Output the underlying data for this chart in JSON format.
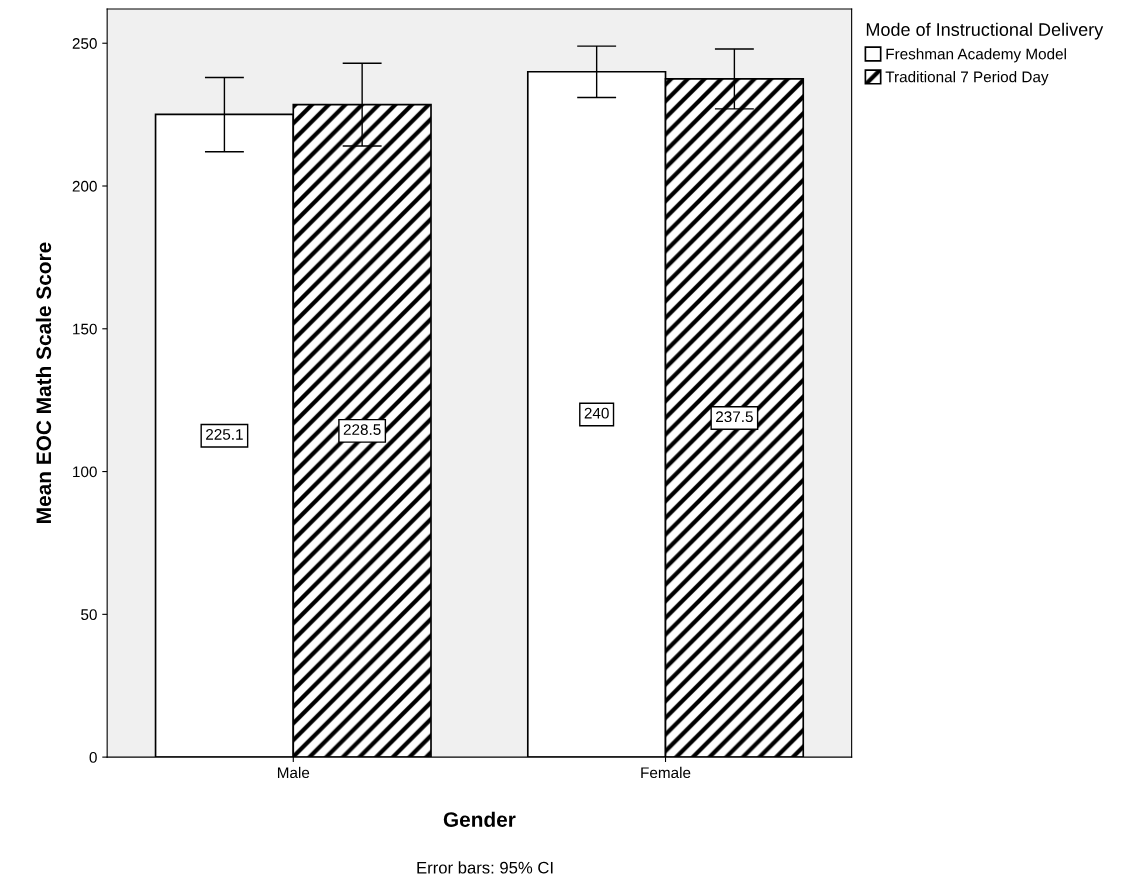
{
  "chart_data": {
    "type": "bar",
    "xlabel": "Gender",
    "ylabel": "Mean EOC Math Scale Score",
    "legend_title": "Mode of Instructional Delivery",
    "categories": [
      "Male",
      "Female"
    ],
    "series": [
      {
        "name": "Freshman Academy Model",
        "color": "#ffffff",
        "values": [
          225.1,
          240
        ],
        "value_labels": [
          "225.1",
          "240"
        ],
        "errors": [
          [
            212,
            238
          ],
          [
            231,
            249
          ]
        ]
      },
      {
        "name": "Traditional 7 Period Day",
        "color": "#000000",
        "values": [
          228.5,
          237.5
        ],
        "value_labels": [
          "228.5",
          "237.5"
        ],
        "errors": [
          [
            214,
            243
          ],
          [
            227,
            248
          ]
        ]
      }
    ],
    "ylim": [
      0,
      262
    ],
    "yticks": [
      0,
      50,
      100,
      150,
      200,
      250
    ],
    "grid": false,
    "legend": "top right",
    "annotations": [
      "Error bars: 95% CI"
    ]
  }
}
